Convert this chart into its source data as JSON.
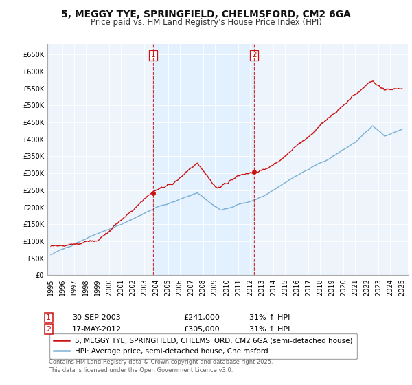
{
  "title": "5, MEGGY TYE, SPRINGFIELD, CHELMSFORD, CM2 6GA",
  "subtitle": "Price paid vs. HM Land Registry's House Price Index (HPI)",
  "ylim": [
    0,
    680000
  ],
  "yticks": [
    0,
    50000,
    100000,
    150000,
    200000,
    250000,
    300000,
    350000,
    400000,
    450000,
    500000,
    550000,
    600000,
    650000
  ],
  "ytick_labels": [
    "£0",
    "£50K",
    "£100K",
    "£150K",
    "£200K",
    "£250K",
    "£300K",
    "£350K",
    "£400K",
    "£450K",
    "£500K",
    "£550K",
    "£600K",
    "£650K"
  ],
  "hpi_color": "#7aafd4",
  "property_color": "#cc1111",
  "vline_color": "#cc1111",
  "shade_color": "#ddeeff",
  "plot_bg": "#eef4fb",
  "fig_bg": "#ffffff",
  "grid_color": "#ffffff",
  "marker1_date": 2003.75,
  "marker1_value": 241000,
  "marker2_date": 2012.37,
  "marker2_value": 305000,
  "legend_line1": "5, MEGGY TYE, SPRINGFIELD, CHELMSFORD, CM2 6GA (semi-detached house)",
  "legend_line2": "HPI: Average price, semi-detached house, Chelmsford",
  "annotation1_num": "1",
  "annotation1_date": "30-SEP-2003",
  "annotation1_price": "£241,000",
  "annotation1_hpi": "31% ↑ HPI",
  "annotation2_num": "2",
  "annotation2_date": "17-MAY-2012",
  "annotation2_price": "£305,000",
  "annotation2_hpi": "31% ↑ HPI",
  "footer": "Contains HM Land Registry data © Crown copyright and database right 2025.\nThis data is licensed under the Open Government Licence v3.0.",
  "title_fontsize": 10,
  "subtitle_fontsize": 8.5,
  "tick_fontsize": 7,
  "legend_fontsize": 7.5,
  "annotation_fontsize": 8,
  "footer_fontsize": 6
}
